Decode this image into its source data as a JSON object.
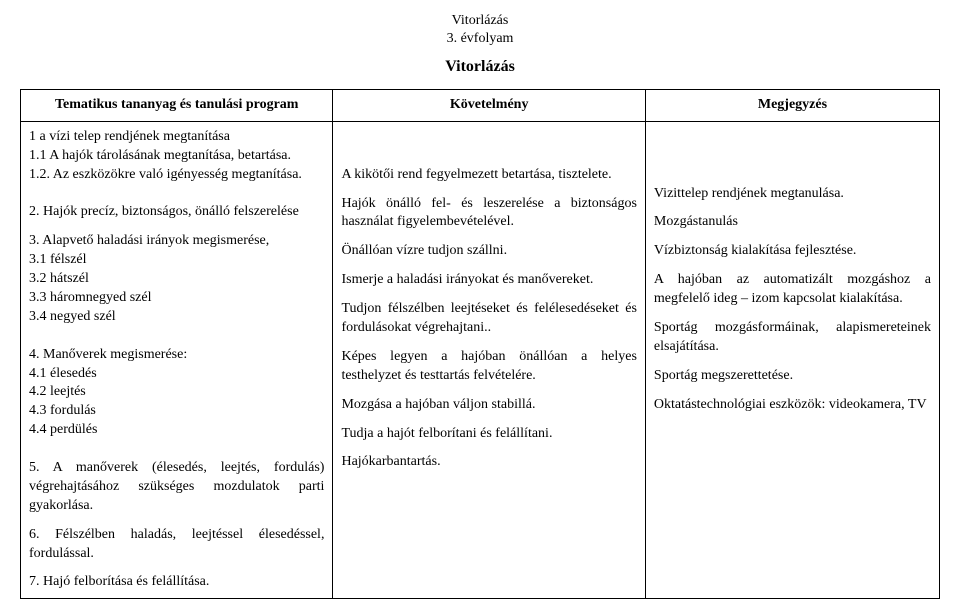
{
  "header": {
    "line1": "Vitorlázás",
    "line2": "3. évfolyam",
    "main": "Vitorlázás"
  },
  "table": {
    "headers": {
      "c1": "Tematikus tananyag és tanulási program",
      "c2": "Követelmény",
      "c3": "Megjegyzés"
    },
    "col1": {
      "p1": "1 a vízi telep rendjének megtanítása",
      "p1a": "1.1 A hajók tárolásának megtanítása, betartása.",
      "p1b": "1.2. Az eszközökre való igényesség megtanítása.",
      "p2": "2. Hajók precíz, biztonságos, önálló felszerelése",
      "p3": "3. Alapvető haladási irányok megismerése,",
      "p3a": "3.1 félszél",
      "p3b": "3.2 hátszél",
      "p3c": "3.3 háromnegyed szél",
      "p3d": "3.4 negyed szél",
      "p4": "4. Manőverek megismerése:",
      "p4a": "4.1 élesedés",
      "p4b": "4.2 leejtés",
      "p4c": "4.3 fordulás",
      "p4d": "4.4 perdülés",
      "p5": "5. A manőverek (élesedés, leejtés, fordulás) végrehajtásához szükséges mozdulatok parti gyakorlása.",
      "p6": "6. Félszélben haladás, leejtéssel élesedéssel, fordulással.",
      "p7": "7. Hajó felborítása és felállítása."
    },
    "col2": {
      "q1": "A kikötői rend fegyelmezett betartása, tisztelete.",
      "q2": "Hajók önálló fel- és leszerelése a biztonságos használat figyelembevételével.",
      "q3": "Önállóan vízre tudjon szállni.",
      "q4": "Ismerje a haladási irányokat és manővereket.",
      "q5": "Tudjon félszélben leejtéseket és felélesedéseket és fordulásokat végrehajtani..",
      "q6": "Képes legyen a hajóban önállóan a helyes testhelyzet és testtartás felvételére.",
      "q7": "Mozgása a hajóban váljon stabillá.",
      "q8": "Tudja a hajót felborítani és felállítani.",
      "q9": "Hajókarbantartás."
    },
    "col3": {
      "r1": "Vizittelep rendjének megtanulása.",
      "r2": "Mozgástanulás",
      "r3": "Vízbiztonság kialakítása fejlesztése.",
      "r4": "A hajóban az automatizált mozgáshoz a megfelelő ideg – izom kapcsolat kialakítása.",
      "r5": "Sportág mozgásformáinak, alapismereteinek elsajátítása.",
      "r6": "Sportág megszerettetése.",
      "r7": "Oktatástechnológiai eszközök: videokamera, TV"
    }
  }
}
